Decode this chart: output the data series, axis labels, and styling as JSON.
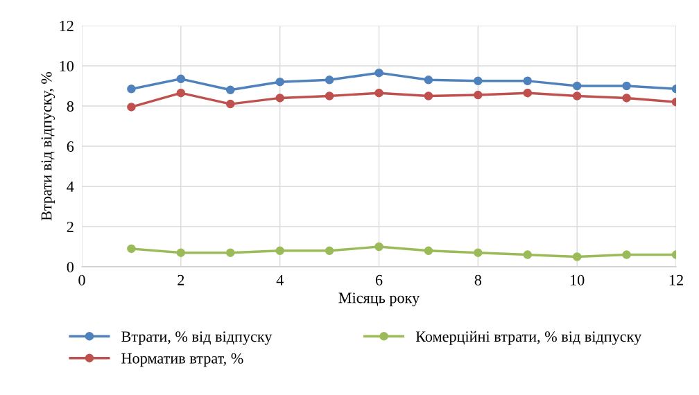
{
  "chart_data": {
    "type": "line",
    "xlabel": "Місяць року",
    "ylabel": "Втрати від відпуску, %",
    "x": [
      1,
      2,
      3,
      4,
      5,
      6,
      7,
      8,
      9,
      10,
      11,
      12
    ],
    "series": [
      {
        "name": "Втрати, % від відпуску",
        "color": "#4f81bd",
        "values": [
          8.85,
          9.35,
          8.8,
          9.2,
          9.3,
          9.65,
          9.3,
          9.25,
          9.25,
          9.0,
          9.0,
          8.85
        ]
      },
      {
        "name": "Норматив втрат, %",
        "color": "#c0504d",
        "values": [
          7.95,
          8.65,
          8.1,
          8.4,
          8.5,
          8.65,
          8.5,
          8.55,
          8.65,
          8.5,
          8.4,
          8.2
        ]
      },
      {
        "name": "Комерційні втрати, % від відпуску",
        "color": "#9bbb59",
        "values": [
          0.9,
          0.7,
          0.7,
          0.8,
          0.8,
          1.0,
          0.8,
          0.7,
          0.6,
          0.5,
          0.6,
          0.6
        ]
      }
    ],
    "xlim": [
      0,
      12
    ],
    "xticks": [
      0,
      2,
      4,
      6,
      8,
      10,
      12
    ],
    "ylim": [
      0,
      12
    ],
    "yticks": [
      0,
      2,
      4,
      6,
      8,
      10,
      12
    ],
    "grid": true,
    "legend": "bottom",
    "marker": "circle",
    "line_style": "solid"
  }
}
